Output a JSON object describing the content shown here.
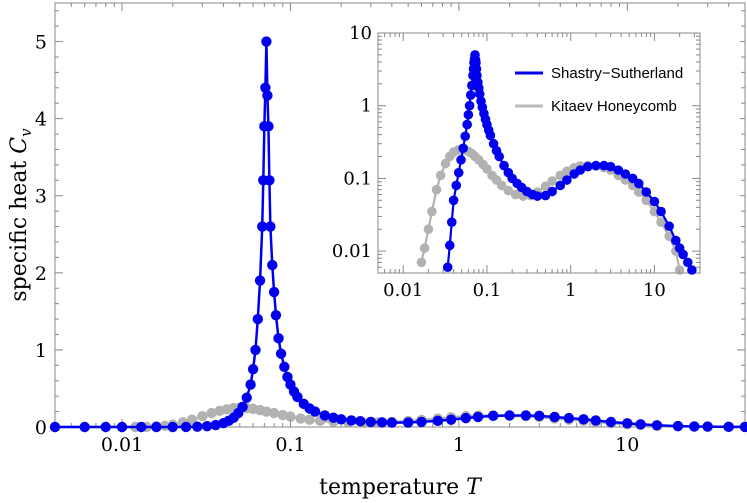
{
  "chart_data": [
    {
      "type": "line",
      "role": "main",
      "xlabel": "temperature T",
      "ylabel": "specific heat C_v",
      "xscale": "log",
      "yscale": "linear",
      "xlim": [
        0.004,
        50
      ],
      "ylim": [
        0,
        5.5
      ],
      "xticks": [
        {
          "value": 0.01,
          "label": "0.01"
        },
        {
          "value": 0.1,
          "label": "0.1"
        },
        {
          "value": 1,
          "label": "1"
        },
        {
          "value": 10,
          "label": "10"
        }
      ],
      "yticks": [
        {
          "value": 0,
          "label": "0"
        },
        {
          "value": 1,
          "label": "1"
        },
        {
          "value": 2,
          "label": "2"
        },
        {
          "value": 3,
          "label": "3"
        },
        {
          "value": 4,
          "label": "4"
        },
        {
          "value": 5,
          "label": "5"
        }
      ],
      "series": [
        {
          "name": "Kitaev Honeycomb",
          "color": "#999999",
          "x": [
            0.004,
            0.006,
            0.008,
            0.01,
            0.012,
            0.014,
            0.016,
            0.018,
            0.02,
            0.023,
            0.026,
            0.03,
            0.034,
            0.038,
            0.042,
            0.046,
            0.05,
            0.055,
            0.06,
            0.066,
            0.072,
            0.08,
            0.09,
            0.1,
            0.115,
            0.13,
            0.15,
            0.18,
            0.22,
            0.27,
            0.33,
            0.4,
            0.5,
            0.6,
            0.75,
            0.9,
            1.1,
            1.3,
            1.6,
            2.0,
            2.5,
            3.0,
            3.7,
            4.5,
            5.5,
            6.5,
            8,
            10,
            12,
            15,
            20,
            25,
            30,
            40,
            50
          ],
          "y": [
            0,
            0,
            0,
            0,
            0,
            0,
            0.008,
            0.015,
            0.03,
            0.06,
            0.095,
            0.14,
            0.18,
            0.21,
            0.23,
            0.245,
            0.25,
            0.245,
            0.235,
            0.22,
            0.2,
            0.18,
            0.155,
            0.135,
            0.11,
            0.095,
            0.08,
            0.068,
            0.06,
            0.057,
            0.058,
            0.065,
            0.078,
            0.092,
            0.11,
            0.125,
            0.14,
            0.148,
            0.15,
            0.148,
            0.14,
            0.13,
            0.11,
            0.095,
            0.08,
            0.065,
            0.05,
            0.035,
            0.025,
            0.016,
            0.009,
            0.006,
            0.004,
            0.002,
            0.001
          ]
        },
        {
          "name": "Shastry−Sutherland",
          "color": "#0000ee",
          "x": [
            0.004,
            0.006,
            0.008,
            0.01,
            0.013,
            0.016,
            0.02,
            0.024,
            0.028,
            0.032,
            0.036,
            0.04,
            0.043,
            0.046,
            0.049,
            0.052,
            0.055,
            0.058,
            0.06,
            0.062,
            0.064,
            0.066,
            0.068,
            0.069,
            0.07,
            0.071,
            0.072,
            0.073,
            0.074,
            0.075,
            0.076,
            0.078,
            0.08,
            0.082,
            0.085,
            0.088,
            0.092,
            0.096,
            0.1,
            0.105,
            0.11,
            0.12,
            0.13,
            0.14,
            0.16,
            0.18,
            0.2,
            0.23,
            0.26,
            0.3,
            0.35,
            0.4,
            0.5,
            0.6,
            0.75,
            0.9,
            1.1,
            1.3,
            1.6,
            2.0,
            2.5,
            3.0,
            3.7,
            4.5,
            5.5,
            6.5,
            8,
            10,
            12,
            15,
            20,
            25,
            30,
            40,
            50
          ],
          "y": [
            0,
            0,
            0,
            0,
            0,
            0,
            0,
            0.001,
            0.004,
            0.01,
            0.025,
            0.05,
            0.08,
            0.12,
            0.18,
            0.26,
            0.38,
            0.55,
            0.75,
            1.0,
            1.4,
            1.9,
            2.6,
            3.2,
            3.9,
            4.4,
            5.0,
            4.3,
            3.9,
            3.2,
            2.6,
            2.1,
            1.75,
            1.45,
            1.15,
            0.95,
            0.78,
            0.65,
            0.55,
            0.46,
            0.39,
            0.3,
            0.24,
            0.2,
            0.15,
            0.12,
            0.1,
            0.085,
            0.075,
            0.066,
            0.06,
            0.057,
            0.058,
            0.066,
            0.08,
            0.095,
            0.115,
            0.13,
            0.145,
            0.15,
            0.15,
            0.145,
            0.13,
            0.115,
            0.1,
            0.085,
            0.065,
            0.048,
            0.035,
            0.022,
            0.012,
            0.007,
            0.005,
            0.002,
            0.001
          ]
        }
      ]
    },
    {
      "type": "line",
      "role": "inset",
      "xscale": "log",
      "yscale": "log",
      "xlim": [
        0.005,
        35
      ],
      "ylim": [
        0.005,
        10
      ],
      "xticks": [
        {
          "value": 0.01,
          "label": "0.01"
        },
        {
          "value": 0.1,
          "label": "0.1"
        },
        {
          "value": 1,
          "label": "1"
        },
        {
          "value": 10,
          "label": "10"
        }
      ],
      "yticks": [
        {
          "value": 0.01,
          "label": "0.01"
        },
        {
          "value": 0.1,
          "label": "0.1"
        },
        {
          "value": 1,
          "label": "1"
        },
        {
          "value": 10,
          "label": "10"
        }
      ],
      "legend": {
        "placement": "top-right",
        "entries": [
          {
            "label": "Shastry−Sutherland",
            "color": "#0000ee"
          },
          {
            "label": "Kitaev Honeycomb",
            "color": "#bbbbbb"
          }
        ]
      },
      "series": [
        {
          "name": "Kitaev Honeycomb",
          "color": "#999999",
          "x": [
            0.0165,
            0.018,
            0.02,
            0.022,
            0.025,
            0.028,
            0.032,
            0.036,
            0.04,
            0.045,
            0.05,
            0.055,
            0.06,
            0.066,
            0.072,
            0.08,
            0.09,
            0.1,
            0.115,
            0.13,
            0.15,
            0.18,
            0.22,
            0.27,
            0.33,
            0.4,
            0.5,
            0.6,
            0.75,
            0.9,
            1.1,
            1.3,
            1.6,
            2.0,
            2.5,
            3.0,
            3.7,
            4.5,
            5.5,
            6.5,
            8,
            10,
            12,
            15,
            18,
            20
          ],
          "y": [
            0.007,
            0.011,
            0.02,
            0.035,
            0.07,
            0.11,
            0.16,
            0.2,
            0.23,
            0.245,
            0.25,
            0.245,
            0.235,
            0.22,
            0.2,
            0.18,
            0.155,
            0.135,
            0.11,
            0.095,
            0.08,
            0.068,
            0.06,
            0.057,
            0.058,
            0.065,
            0.078,
            0.092,
            0.11,
            0.125,
            0.14,
            0.148,
            0.15,
            0.148,
            0.14,
            0.13,
            0.11,
            0.095,
            0.08,
            0.065,
            0.05,
            0.035,
            0.025,
            0.016,
            0.01,
            0.0055
          ]
        },
        {
          "name": "Shastry−Sutherland",
          "color": "#0000ee",
          "x": [
            0.034,
            0.036,
            0.038,
            0.04,
            0.043,
            0.046,
            0.049,
            0.052,
            0.055,
            0.058,
            0.06,
            0.062,
            0.064,
            0.066,
            0.068,
            0.069,
            0.07,
            0.071,
            0.072,
            0.073,
            0.074,
            0.075,
            0.076,
            0.078,
            0.08,
            0.082,
            0.085,
            0.088,
            0.092,
            0.096,
            0.1,
            0.105,
            0.11,
            0.12,
            0.13,
            0.14,
            0.16,
            0.18,
            0.2,
            0.23,
            0.26,
            0.3,
            0.35,
            0.4,
            0.5,
            0.6,
            0.75,
            0.9,
            1.1,
            1.3,
            1.6,
            2.0,
            2.5,
            3.0,
            3.7,
            4.5,
            5.5,
            6.5,
            8,
            10,
            12,
            15,
            18,
            20,
            22,
            25,
            28
          ],
          "y": [
            0.006,
            0.012,
            0.025,
            0.05,
            0.08,
            0.12,
            0.18,
            0.26,
            0.38,
            0.55,
            0.75,
            1.0,
            1.4,
            1.9,
            2.6,
            3.2,
            3.9,
            4.4,
            5.0,
            4.3,
            3.9,
            3.2,
            2.6,
            2.1,
            1.75,
            1.45,
            1.15,
            0.95,
            0.78,
            0.65,
            0.55,
            0.46,
            0.39,
            0.3,
            0.24,
            0.2,
            0.15,
            0.12,
            0.1,
            0.085,
            0.075,
            0.066,
            0.06,
            0.057,
            0.058,
            0.066,
            0.08,
            0.095,
            0.115,
            0.13,
            0.145,
            0.15,
            0.15,
            0.145,
            0.13,
            0.115,
            0.1,
            0.085,
            0.065,
            0.048,
            0.035,
            0.022,
            0.014,
            0.011,
            0.009,
            0.007,
            0.0055
          ]
        }
      ]
    }
  ]
}
